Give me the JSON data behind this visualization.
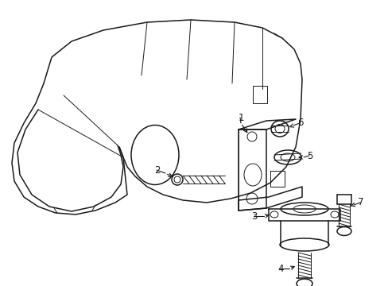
{
  "background_color": "#ffffff",
  "line_color": "#1a1a1a",
  "lw": 1.1,
  "tlw": 0.7,
  "fs": 8.5
}
